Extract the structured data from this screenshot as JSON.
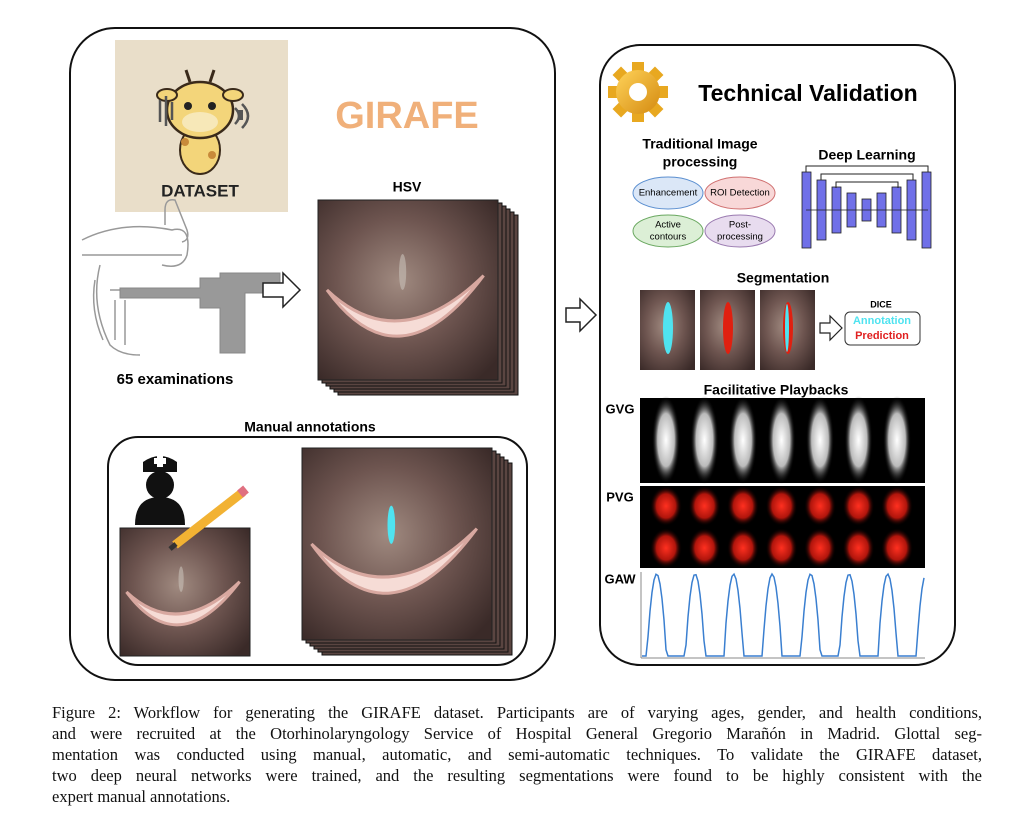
{
  "left_panel": {
    "logo_text": "DATASET",
    "title": "GIRAFE",
    "hsv_label": "HSV",
    "examinations": "65 examinations",
    "manual_annotations": "Manual annotations"
  },
  "right_panel": {
    "title": "Technical Validation",
    "traditional": {
      "title_lines": [
        "Traditional Image",
        "processing"
      ],
      "methods": [
        [
          "Enhancement"
        ],
        [
          "ROI Detection"
        ],
        [
          "Active",
          "contours"
        ],
        [
          "Post-",
          "processing"
        ]
      ]
    },
    "deep_learning": "Deep Learning",
    "segmentation": "Segmentation",
    "dice": {
      "title": "DICE",
      "annotation": "Annotation",
      "prediction": "Prediction"
    },
    "playbacks": {
      "title": "Facilitative Playbacks",
      "labels": [
        "GVG",
        "PVG",
        "GAW"
      ]
    }
  },
  "caption": {
    "lines": [
      "Figure 2: Workflow for generating the GIRAFE dataset. Participants are of varying ages, gender, and health conditions,",
      "and were recruited at the Otorhinolaryngology Service of Hospital General Gregorio Marañón in Madrid. Glottal seg-",
      "mentation was conducted using manual, automatic, and semi-automatic techniques. To validate the GIRAFE dataset,",
      "two deep neural networks were trained, and the resulting segmentations were found to be highly consistent with the",
      "expert manual annotations."
    ]
  }
}
